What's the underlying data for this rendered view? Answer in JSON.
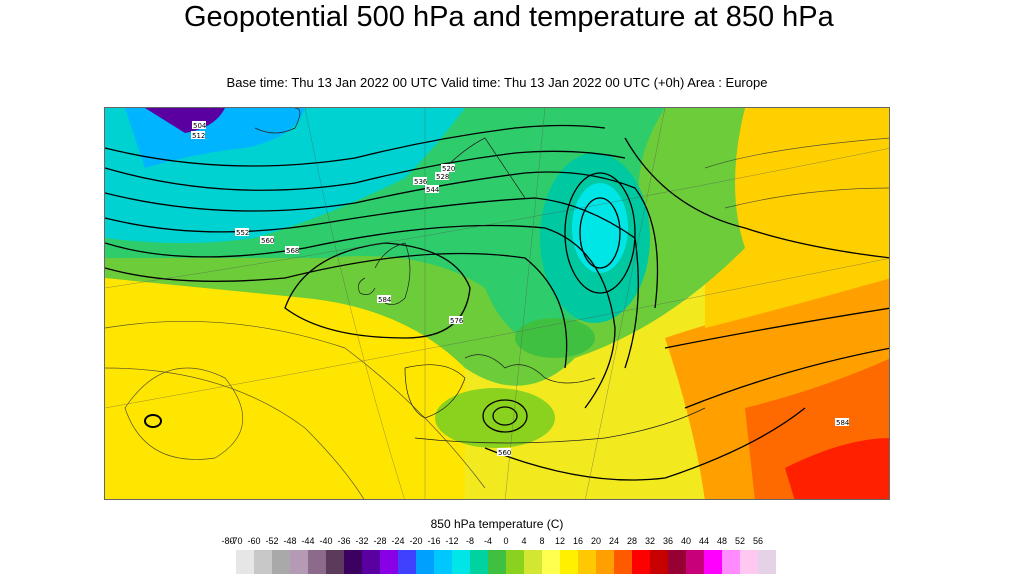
{
  "title": "Geopotential 500 hPa and temperature at 850 hPa",
  "subtitle": "Base time: Thu 13 Jan 2022 00 UTC Valid time: Thu 13 Jan 2022 00 UTC (+0h) Area : Europe",
  "legend": {
    "title": "850 hPa temperature (C)",
    "ticks": [
      "-80",
      "-70",
      "-60",
      "-52",
      "-48",
      "-44",
      "-40",
      "-36",
      "-32",
      "-28",
      "-24",
      "-20",
      "-16",
      "-12",
      "-8",
      "-4",
      "0",
      "4",
      "8",
      "12",
      "16",
      "20",
      "24",
      "28",
      "32",
      "36",
      "40",
      "44",
      "48",
      "52",
      "56"
    ],
    "colors": [
      "#e6e6e6",
      "#c8c8c8",
      "#a9a9a9",
      "#b59ab5",
      "#8c6a8c",
      "#5c3a5c",
      "#3c0060",
      "#5a00a0",
      "#8a00e6",
      "#4040ff",
      "#00a0ff",
      "#00c8ff",
      "#00e6e6",
      "#00d2a0",
      "#40c040",
      "#8ad21e",
      "#d2e632",
      "#ffff50",
      "#fff000",
      "#ffc800",
      "#ffa000",
      "#ff5a00",
      "#ff0000",
      "#c80000",
      "#960032",
      "#c8007a",
      "#ff00ff",
      "#ff8cff",
      "#ffc8f0",
      "#e6d2e6"
    ]
  },
  "contour_labels": [
    "504",
    "512",
    "520",
    "528",
    "536",
    "544",
    "552",
    "560",
    "568",
    "576",
    "584"
  ]
}
